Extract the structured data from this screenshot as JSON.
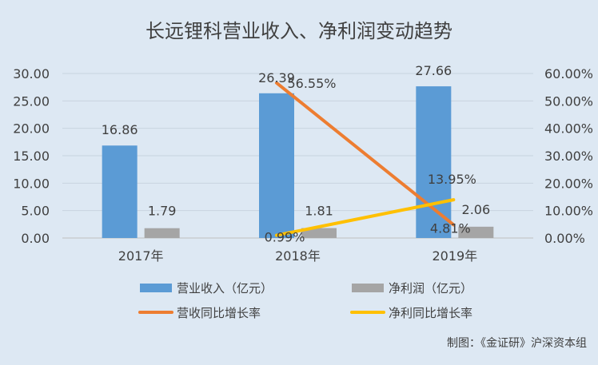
{
  "chart_data": {
    "type": "bar",
    "title": "长远锂科营业收入、净利润变动趋势",
    "categories": [
      "2017年",
      "2018年",
      "2019年"
    ],
    "y_left": {
      "ticks": [
        "0.00",
        "5.00",
        "10.00",
        "15.00",
        "20.00",
        "25.00",
        "30.00"
      ],
      "range": [
        0,
        30
      ]
    },
    "y_right": {
      "ticks": [
        "0.00%",
        "10.00%",
        "20.00%",
        "30.00%",
        "40.00%",
        "50.00%",
        "60.00%"
      ],
      "range": [
        0,
        60
      ]
    },
    "grid": true,
    "legend_position": "bottom",
    "series": [
      {
        "name": "营业收入（亿元）",
        "kind": "bar",
        "axis": "left",
        "color": "#5b9bd5",
        "values": [
          16.86,
          26.39,
          27.66
        ],
        "labels": [
          "16.86",
          "26.39",
          "27.66"
        ]
      },
      {
        "name": "净利润（亿元）",
        "kind": "bar",
        "axis": "left",
        "color": "#a5a5a5",
        "values": [
          1.79,
          1.81,
          2.06
        ],
        "labels": [
          "1.79",
          "1.81",
          "2.06"
        ]
      },
      {
        "name": "营收同比增长率",
        "kind": "line",
        "axis": "right",
        "color": "#ed7d31",
        "values": [
          null,
          56.55,
          4.81
        ],
        "labels": [
          "",
          "56.55%",
          "4.81%"
        ]
      },
      {
        "name": "净利同比增长率",
        "kind": "line",
        "axis": "right",
        "color": "#ffc000",
        "values": [
          null,
          0.99,
          13.95
        ],
        "labels": [
          "",
          "0.99%",
          "13.95%"
        ]
      }
    ],
    "footnote": "制图：《金证研》沪深资本组"
  }
}
